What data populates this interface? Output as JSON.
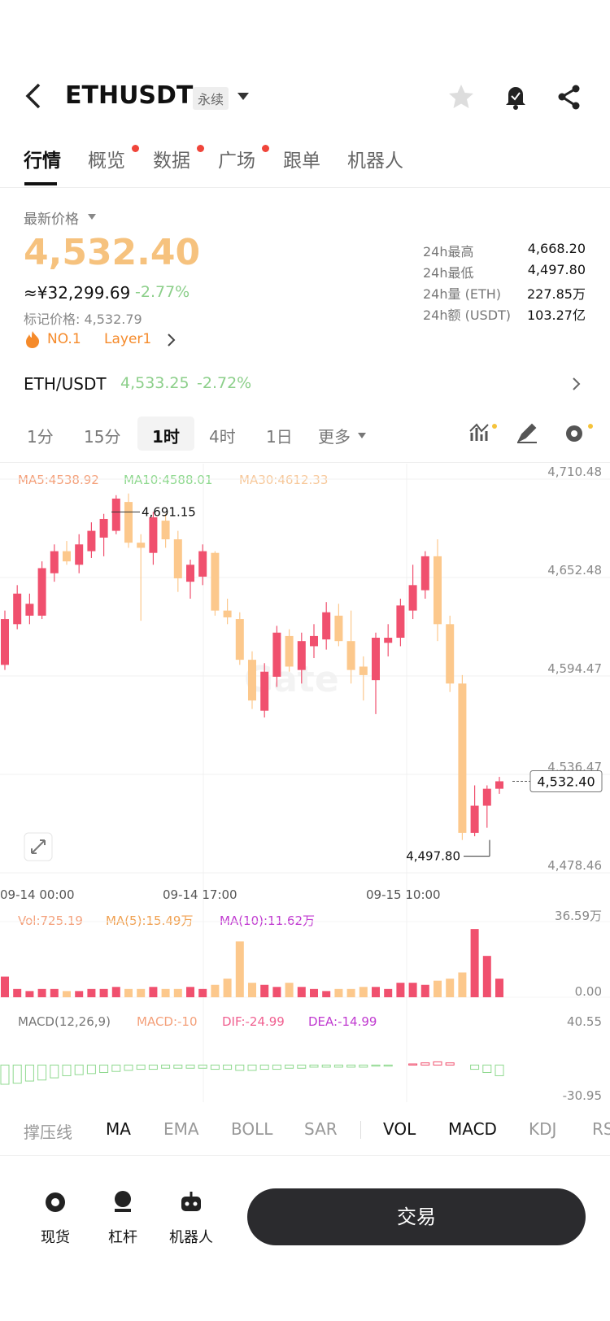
{
  "header": {
    "symbol": "ETHUSDT",
    "contract": "永续"
  },
  "tabs": [
    {
      "label": "行情",
      "dot": false
    },
    {
      "label": "概览",
      "dot": true
    },
    {
      "label": "数据",
      "dot": true
    },
    {
      "label": "广场",
      "dot": true
    },
    {
      "label": "跟单",
      "dot": false
    },
    {
      "label": "机器人",
      "dot": false
    }
  ],
  "price": {
    "label": "最新价格",
    "last": "4,532.40",
    "cny": "≈¥32,299.69",
    "change": "-2.77%",
    "mark": "标记价格: 4,532.79",
    "rank": "NO.1",
    "tag": "Layer1"
  },
  "stats": [
    {
      "label": "24h最高",
      "value": "4,668.20"
    },
    {
      "label": "24h最低",
      "value": "4,497.80"
    },
    {
      "label": "24h量 (ETH)",
      "value": "227.85万"
    },
    {
      "label": "24h额 (USDT)",
      "value": "103.27亿"
    }
  ],
  "pair": {
    "name": "ETH/USDT",
    "price": "4,533.25",
    "change": "-2.72%"
  },
  "intervals": [
    "1分",
    "15分",
    "1时",
    "4时",
    "1日",
    "更多"
  ],
  "chart_data": {
    "type": "candlestick",
    "ma_legend": [
      {
        "label": "MA5:4538.92",
        "color": "#f4a07a"
      },
      {
        "label": "MA10:4588.01",
        "color": "#8fd98f"
      },
      {
        "label": "MA30:4612.33",
        "color": "#f7c89a"
      }
    ],
    "ylim": [
      4478.46,
      4710.48
    ],
    "yticks": [
      {
        "value": 4710.48,
        "label": "4,710.48"
      },
      {
        "value": 4652.48,
        "label": "4,652.48"
      },
      {
        "value": 4594.47,
        "label": "4,594.47"
      },
      {
        "value": 4536.47,
        "label": "4,536.47"
      },
      {
        "value": 4478.46,
        "label": "4,478.46"
      }
    ],
    "time_labels": [
      "09-14 00:00",
      "09-14 17:00",
      "09-15 10:00"
    ],
    "up_color": "#f0506e",
    "down_color": "#fcc88c",
    "open": [
      4601,
      4625,
      4630,
      4630,
      4655,
      4668,
      4660,
      4668,
      4676,
      4680,
      4697,
      4673,
      4667,
      4686,
      4675,
      4650,
      4653,
      4667,
      4633,
      4628,
      4604,
      4574,
      4594,
      4618,
      4598,
      4612,
      4616,
      4630,
      4615,
      4600,
      4592,
      4614,
      4617,
      4633,
      4645,
      4665,
      4625,
      4590,
      4502,
      4518,
      4528
    ],
    "high": [
      4633,
      4648,
      4643,
      4662,
      4672,
      4674,
      4678,
      4685,
      4690,
      4701,
      4702,
      4678,
      4691.15,
      4690,
      4680,
      4663,
      4672,
      4668,
      4640,
      4632,
      4609,
      4602,
      4624,
      4622,
      4620,
      4625,
      4638,
      4637,
      4633,
      4606,
      4620,
      4625,
      4640,
      4660,
      4668,
      4675,
      4630,
      4595,
      4530,
      4530,
      4535
    ],
    "low": [
      4598,
      4622,
      4625,
      4628,
      4650,
      4660,
      4655,
      4664,
      4665,
      4678,
      4670,
      4627,
      4660,
      4670,
      4644,
      4640,
      4648,
      4630,
      4625,
      4601,
      4575,
      4570,
      4588,
      4597,
      4590,
      4605,
      4610,
      4612,
      4590,
      4580,
      4572,
      4606,
      4612,
      4628,
      4640,
      4615,
      4585,
      4497.8,
      4500,
      4505,
      4525
    ],
    "close": [
      4628,
      4643,
      4637,
      4658,
      4668,
      4662,
      4672,
      4680,
      4687,
      4699,
      4673,
      4670,
      4688,
      4675,
      4652,
      4660,
      4668,
      4633,
      4629,
      4604,
      4580,
      4597,
      4620,
      4600,
      4615,
      4618,
      4632,
      4615,
      4598,
      4595,
      4617,
      4617,
      4636,
      4648,
      4665,
      4625,
      4590,
      4502,
      4518,
      4528,
      4532.4
    ],
    "annotations": [
      {
        "value": 4691.15,
        "label": "4,691.15"
      },
      {
        "value": 4497.8,
        "label": "4,497.80"
      },
      {
        "value": 4532.4,
        "label": "4,532.40"
      }
    ],
    "volume": {
      "legend": [
        {
          "label": "Vol:725.19",
          "color": "#f4a07a"
        },
        {
          "label": "MA(5):15.49万",
          "color": "#f0a050"
        },
        {
          "label": "MA(10):11.62万",
          "color": "#c03ad0"
        }
      ],
      "ylim": [
        0,
        36.59
      ],
      "yticks": [
        {
          "value": 36.59,
          "label": "36.59万"
        },
        {
          "value": 0,
          "label": "0.00"
        }
      ],
      "values": [
        10,
        4,
        3,
        4,
        4,
        3,
        3,
        4,
        4,
        5,
        4,
        4,
        5,
        4,
        4,
        5,
        4,
        6,
        9,
        27,
        7,
        6,
        5,
        7,
        5,
        4,
        3,
        4,
        4,
        5,
        5,
        4,
        7,
        7,
        6,
        8,
        9,
        12,
        33,
        20,
        9
      ]
    },
    "macd": {
      "legend": [
        {
          "label": "MACD(12,26,9)",
          "color": "#777"
        },
        {
          "label": "MACD:-10",
          "color": "#f4a07a"
        },
        {
          "label": "DIF:-24.99",
          "color": "#f06090"
        },
        {
          "label": "DEA:-14.99",
          "color": "#c03ad0"
        }
      ],
      "ylim": [
        -30.95,
        40.55
      ],
      "yticks": [
        40.55,
        -30.95
      ],
      "values": [
        -18,
        -17,
        -15,
        -14,
        -12,
        -10,
        -9,
        -8,
        -7,
        -6,
        -5,
        -4,
        -4,
        -3,
        -3,
        -3,
        -3,
        -4,
        -4,
        -5,
        -5,
        -4,
        -4,
        -3,
        -3,
        -2,
        -2,
        -2,
        -2,
        -2,
        -1,
        -1,
        0,
        1,
        2,
        3,
        2,
        0,
        -4,
        -7,
        -10
      ]
    }
  },
  "indicators": [
    {
      "label": "撑压线",
      "active": false
    },
    {
      "label": "MA",
      "active": true
    },
    {
      "label": "EMA",
      "active": false
    },
    {
      "label": "BOLL",
      "active": false
    },
    {
      "label": "SAR",
      "active": false
    },
    {
      "label": "VOL",
      "active": true
    },
    {
      "label": "MACD",
      "active": true
    },
    {
      "label": "KDJ",
      "active": false
    },
    {
      "label": "RSI",
      "active": false
    }
  ],
  "bottom": {
    "items": [
      "现货",
      "杠杆",
      "机器人"
    ],
    "trade": "交易"
  }
}
